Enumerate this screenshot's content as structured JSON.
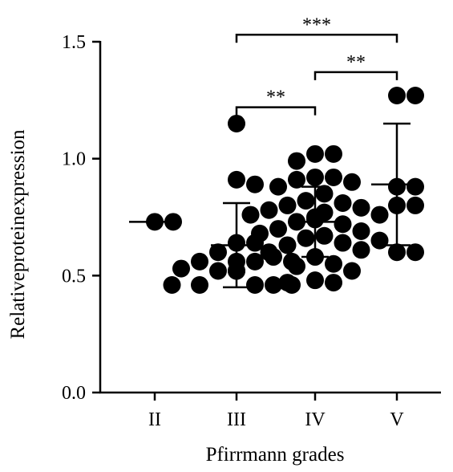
{
  "chart_data": {
    "type": "scatter",
    "xlabel": "Pfirrmann grades",
    "ylabel": "Relativeproteinexpression",
    "categories": [
      "II",
      "III",
      "IV",
      "V"
    ],
    "yticks": [
      "0.0",
      "0.5",
      "1.0",
      "1.5"
    ],
    "ylim": [
      0,
      1.5
    ],
    "grid": false,
    "legend": "none",
    "colors": {
      "points": "#000000",
      "lines": "#000000",
      "background": "#ffffff"
    },
    "groups": [
      {
        "category": "II",
        "points": [
          0.73,
          0.73
        ],
        "mean": 0.73,
        "error": null
      },
      {
        "category": "III",
        "points": [
          1.15,
          0.91,
          0.89,
          0.64,
          0.64,
          0.56,
          0.56,
          0.56,
          0.56,
          0.53,
          0.52,
          0.52,
          0.52,
          0.52,
          0.46,
          0.46,
          0.46,
          0.46,
          0.46,
          0.6,
          0.58
        ],
        "mean": 0.63,
        "error": 0.18
      },
      {
        "category": "IV",
        "points": [
          1.02,
          1.02,
          0.99,
          0.92,
          0.92,
          0.91,
          0.9,
          0.88,
          0.85,
          0.82,
          0.81,
          0.8,
          0.79,
          0.78,
          0.77,
          0.76,
          0.76,
          0.75,
          0.74,
          0.73,
          0.72,
          0.7,
          0.69,
          0.68,
          0.67,
          0.66,
          0.65,
          0.64,
          0.63,
          0.61,
          0.6,
          0.58,
          0.55,
          0.54,
          0.52,
          0.48,
          0.47,
          0.47
        ],
        "mean": 0.73,
        "error": 0.15
      },
      {
        "category": "V",
        "points": [
          1.27,
          1.27,
          0.88,
          0.88,
          0.8,
          0.8,
          0.6,
          0.6
        ],
        "mean": 0.89,
        "error": 0.26
      }
    ],
    "annotations": [
      {
        "from": "III",
        "to": "IV",
        "y": 1.22,
        "label": "**"
      },
      {
        "from": "III",
        "to": "V",
        "y": 1.53,
        "label": "***"
      },
      {
        "from": "IV",
        "to": "V",
        "y": 1.37,
        "label": "**"
      }
    ]
  }
}
